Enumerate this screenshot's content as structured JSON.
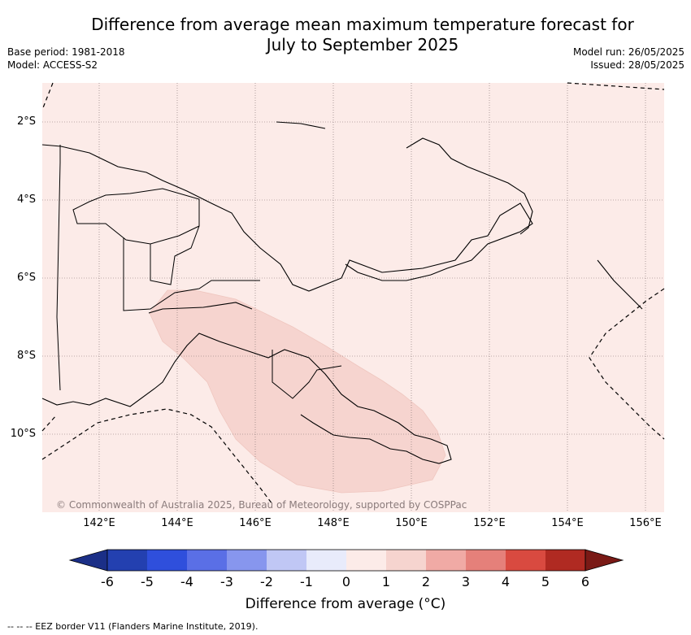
{
  "title_line1": "Difference from average mean maximum temperature forecast for",
  "title_line2": "July to September 2025",
  "base_period": "Base period: 1981-2018",
  "model": "Model: ACCESS-S2",
  "model_run": "Model run: 26/05/2025",
  "issued": "Issued: 28/05/2025",
  "lat_labels": [
    "2°S",
    "4°S",
    "6°S",
    "8°S",
    "10°S"
  ],
  "lon_labels": [
    "142°E",
    "144°E",
    "146°E",
    "148°E",
    "150°E",
    "152°E",
    "154°E",
    "156°E"
  ],
  "copyright": "© Commonwealth of Australia 2025, Bureau of Meteorology, supported by COSPPac",
  "colorbar": {
    "title": "Difference from average (°C)",
    "ticks": [
      "-6",
      "-5",
      "-4",
      "-3",
      "-2",
      "-1",
      "0",
      "1",
      "2",
      "3",
      "4",
      "5",
      "6"
    ],
    "colors": [
      "#1b2f87",
      "#2340b0",
      "#2f4fdc",
      "#5a6fe6",
      "#8796ee",
      "#c0c7f5",
      "#e8ebfb",
      "#fcebe8",
      "#f6d4cf",
      "#f0aaa5",
      "#e5807a",
      "#d94a40",
      "#b02a22",
      "#7a1a16"
    ]
  },
  "map_fills": {
    "background": "#fcebe8",
    "anomaly_1_to_2": "#f6d4cf"
  },
  "eez_note": "-- -- -- EEZ border V11 (Flanders Marine Institute, 2019)."
}
